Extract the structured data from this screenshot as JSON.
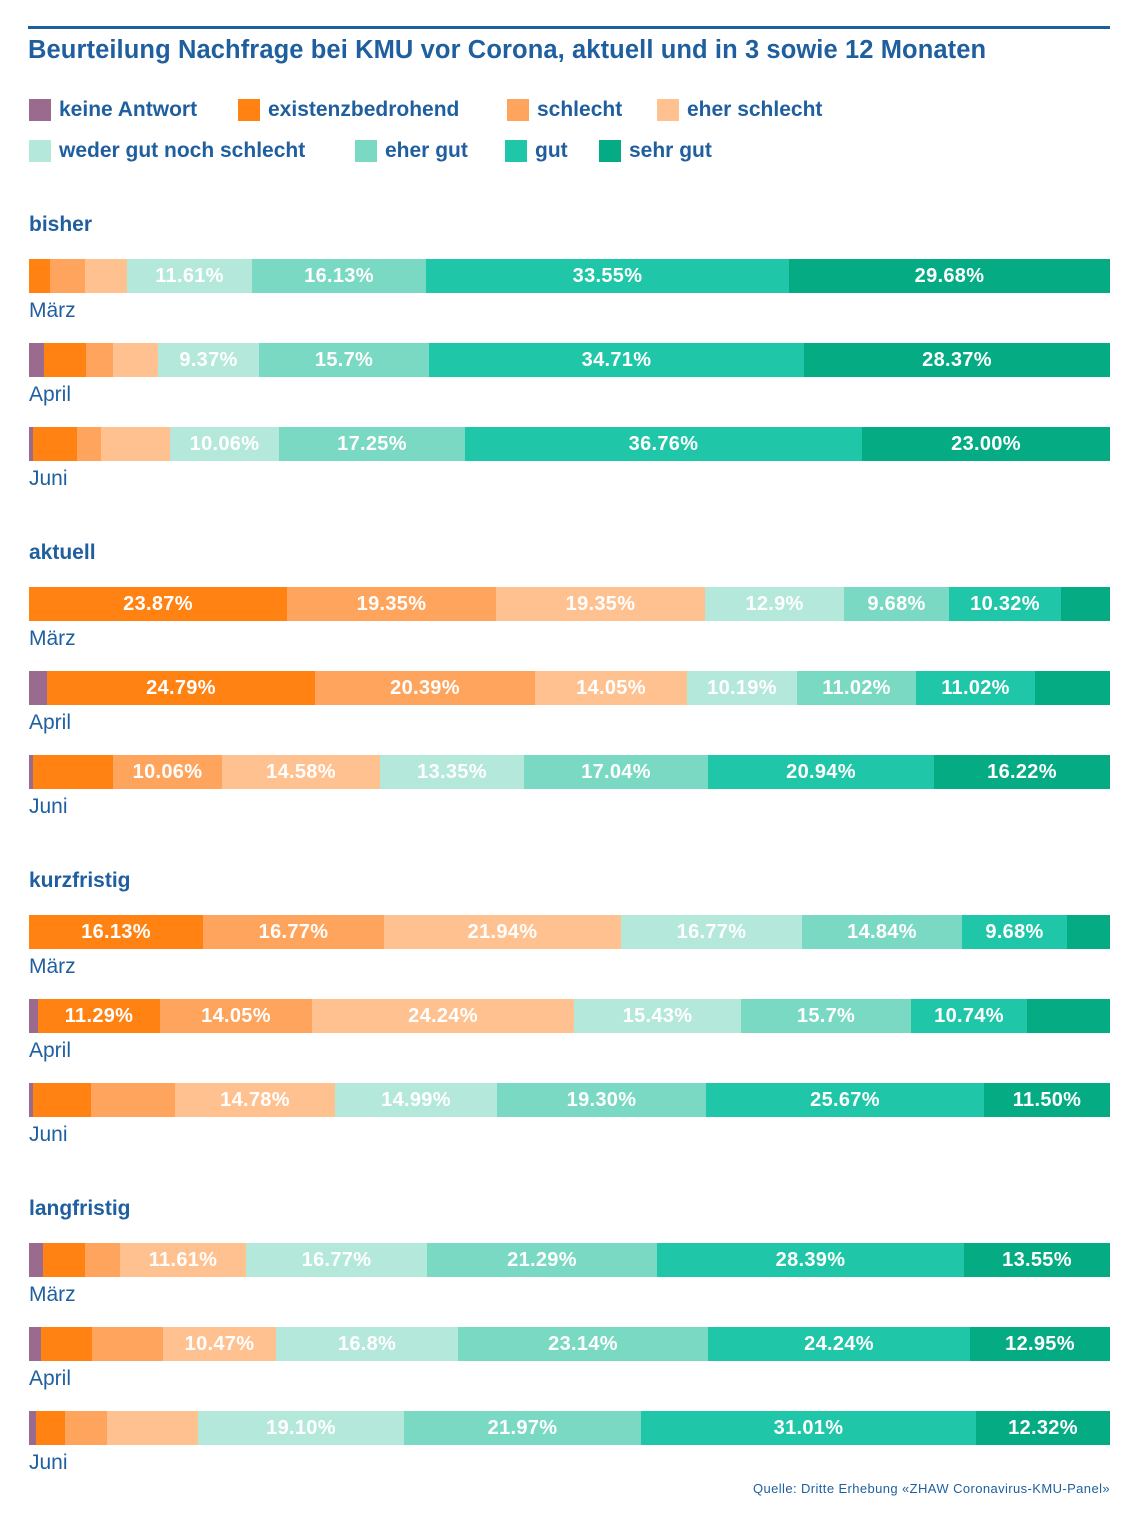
{
  "title": "Beurteilung Nachfrage bei KMU vor Corona, aktuell und in 3 sowie 12 Monaten",
  "source": "Quelle: Dritte Erhebung «ZHAW Coronavirus-KMU-Panel»",
  "colors": {
    "keine Antwort": "#9b6b8f",
    "existenzbedrohend": "#ff8212",
    "schlecht": "#ffa45c",
    "eher schlecht": "#ffc190",
    "weder gut noch schlecht": "#b4e8da",
    "eher gut": "#7ad9c2",
    "gut": "#1fc6a8",
    "sehr gut": "#05ab83"
  },
  "chart_data": {
    "type": "bar",
    "stacked": "horizontal-100-percent",
    "unit": "%",
    "categories": [
      "keine Antwort",
      "existenzbedrohend",
      "schlecht",
      "eher schlecht",
      "weder gut noch schlecht",
      "eher gut",
      "gut",
      "sehr gut"
    ],
    "legend": {
      "placement": "top",
      "rows": [
        [
          "keine Antwort",
          "existenzbedrohend",
          "schlecht",
          "eher schlecht"
        ],
        [
          "weder gut noch schlecht",
          "eher gut",
          "gut",
          "sehr gut"
        ]
      ]
    },
    "groups": [
      {
        "title": "bisher",
        "rows": [
          {
            "label": "März",
            "values": [
              0,
              1.94,
              3.23,
              3.87,
              11.61,
              16.13,
              33.55,
              29.68
            ],
            "labels": [
              "",
              "",
              "",
              "",
              "11.61%",
              "16.13%",
              "33.55%",
              "29.68%"
            ]
          },
          {
            "label": "April",
            "values": [
              1.38,
              3.86,
              2.48,
              4.13,
              9.37,
              15.7,
              34.71,
              28.37
            ],
            "labels": [
              "",
              "",
              "",
              "",
              "9.37%",
              "15.7%",
              "34.71%",
              "28.37%"
            ]
          },
          {
            "label": "Juni",
            "values": [
              0.41,
              4.11,
              2.26,
              6.37,
              10.06,
              17.25,
              36.76,
              23.0
            ],
            "labels": [
              "",
              "",
              "",
              "",
              "10.06%",
              "17.25%",
              "36.76%",
              "23.00%"
            ]
          }
        ]
      },
      {
        "title": "aktuell",
        "rows": [
          {
            "label": "März",
            "values": [
              0,
              23.87,
              19.35,
              19.35,
              12.9,
              9.68,
              10.32,
              4.53
            ],
            "labels": [
              "",
              "23.87%",
              "19.35%",
              "19.35%",
              "12.9%",
              "9.68%",
              "10.32%",
              ""
            ]
          },
          {
            "label": "April",
            "values": [
              1.66,
              24.79,
              20.39,
              14.05,
              10.19,
              11.02,
              11.02,
              6.88
            ],
            "labels": [
              "",
              "24.79%",
              "20.39%",
              "14.05%",
              "10.19%",
              "11.02%",
              "11.02%",
              ""
            ]
          },
          {
            "label": "Juni",
            "values": [
              0.41,
              7.4,
              10.06,
              14.58,
              13.35,
              17.04,
              20.94,
              16.22
            ],
            "labels": [
              "",
              "",
              "10.06%",
              "14.58%",
              "13.35%",
              "17.04%",
              "20.94%",
              "16.22%"
            ]
          }
        ]
      },
      {
        "title": "kurzfristig",
        "rows": [
          {
            "label": "März",
            "values": [
              0,
              16.13,
              16.77,
              21.94,
              16.77,
              14.84,
              9.68,
              3.87
            ],
            "labels": [
              "",
              "16.13%",
              "16.77%",
              "21.94%",
              "16.77%",
              "14.84%",
              "9.68%",
              ""
            ]
          },
          {
            "label": "April",
            "values": [
              0.83,
              11.29,
              14.05,
              24.24,
              15.43,
              15.7,
              10.74,
              7.72
            ],
            "labels": [
              "",
              "11.29%",
              "14.05%",
              "24.24%",
              "15.43%",
              "15.7%",
              "10.74%",
              ""
            ]
          },
          {
            "label": "Juni",
            "values": [
              0.41,
              5.34,
              7.8,
              14.78,
              14.99,
              19.3,
              25.67,
              11.5
            ],
            "labels": [
              "",
              "",
              "",
              "14.78%",
              "14.99%",
              "19.30%",
              "25.67%",
              "11.50%"
            ]
          }
        ]
      },
      {
        "title": "langfristig",
        "rows": [
          {
            "label": "März",
            "values": [
              1.29,
              3.87,
              3.23,
              11.61,
              16.77,
              21.29,
              28.39,
              13.55
            ],
            "labels": [
              "",
              "",
              "",
              "11.61%",
              "16.77%",
              "21.29%",
              "28.39%",
              "13.55%"
            ]
          },
          {
            "label": "April",
            "values": [
              1.1,
              4.68,
              6.61,
              10.47,
              16.8,
              23.14,
              24.24,
              12.95
            ],
            "labels": [
              "",
              "",
              "",
              "10.47%",
              "16.8%",
              "23.14%",
              "24.24%",
              "12.95%"
            ]
          },
          {
            "label": "Juni",
            "values": [
              0.62,
              2.67,
              3.9,
              8.42,
              19.1,
              21.97,
              31.01,
              12.32
            ],
            "labels": [
              "",
              "",
              "",
              "",
              "19.10%",
              "21.97%",
              "31.01%",
              "12.32%"
            ]
          }
        ]
      }
    ]
  }
}
